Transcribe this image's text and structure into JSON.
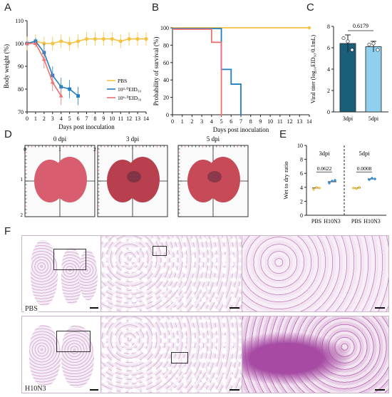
{
  "panels": {
    "A": {
      "label": "A",
      "ylabel": "Body weight (%)",
      "xlabel": "Days post inoculation",
      "yticks": [
        "70",
        "80",
        "90",
        "100",
        "110"
      ],
      "xticks": [
        "0",
        "1",
        "2",
        "3",
        "4",
        "5",
        "6",
        "7",
        "8",
        "9",
        "10",
        "11",
        "12",
        "13",
        "14"
      ],
      "legend": [
        "PBS",
        "10³·⁰EID₅₀",
        "10⁶·⁰EID₅₀"
      ]
    },
    "B": {
      "label": "B",
      "ylabel": "Probability of survival (%)",
      "xlabel": "Days post inoculation",
      "yticks": [
        "0",
        "20",
        "40",
        "60",
        "80",
        "100"
      ],
      "xticks": [
        "0",
        "1",
        "2",
        "3",
        "4",
        "5",
        "6",
        "7",
        "8",
        "9",
        "10",
        "11",
        "12",
        "13",
        "14"
      ]
    },
    "C": {
      "label": "C",
      "ylabel": "Viral titer (log₁₀EID₅₀/0.1mL)",
      "yticks": [
        "0",
        "2",
        "4",
        "6",
        "8"
      ],
      "categories": [
        "3dpi",
        "5dpi"
      ],
      "pvalue": "0.6179"
    },
    "D": {
      "label": "D",
      "titles": [
        "0 dpi",
        "3 dpi",
        "5 dpi"
      ],
      "ruler_top": [
        "0",
        "1",
        "2"
      ],
      "ruler_left": [
        "1",
        "2"
      ]
    },
    "E": {
      "label": "E",
      "ylabel": "Wet to dry ratio",
      "yticks": [
        "0",
        "2",
        "4",
        "6",
        "8",
        "10"
      ],
      "groups": [
        "3dpi",
        "5dpi"
      ],
      "categories": [
        "PBS",
        "H10N3",
        "PBS",
        "H10N3"
      ],
      "pvalues": [
        "0.0622",
        "0.0008"
      ]
    },
    "F": {
      "label": "F",
      "row_labels": [
        "PBS",
        "H10N3"
      ]
    }
  },
  "chart_data": [
    {
      "type": "line",
      "title": "",
      "xlabel": "Days post inoculation",
      "ylabel": "Body weight (%)",
      "xlim": [
        0,
        14
      ],
      "ylim": [
        70,
        110
      ],
      "series": [
        {
          "name": "PBS",
          "color": "#f5c342",
          "x": [
            0,
            1,
            2,
            3,
            4,
            5,
            6,
            7,
            8,
            9,
            10,
            11,
            12,
            13,
            14
          ],
          "y": [
            100,
            101,
            100,
            100,
            101,
            100,
            101,
            102,
            102,
            102,
            102,
            101,
            102,
            102,
            102
          ]
        },
        {
          "name": "10³·⁰EID₅₀",
          "color": "#1f7dc1",
          "x": [
            0,
            1,
            2,
            3,
            4,
            5,
            6
          ],
          "y": [
            100,
            101,
            96,
            86,
            81,
            80,
            77
          ]
        },
        {
          "name": "10⁶·⁰EID₅₀",
          "color": "#f07070",
          "x": [
            0,
            1,
            2,
            3,
            4
          ],
          "y": [
            100,
            100,
            93,
            83,
            77
          ]
        }
      ]
    },
    {
      "type": "line",
      "title": "",
      "xlabel": "Days post inoculation",
      "ylabel": "Probability of survival (%)",
      "xlim": [
        0,
        14
      ],
      "ylim": [
        0,
        100
      ],
      "series": [
        {
          "name": "",
          "color": "#f5c342",
          "x": [
            0,
            14
          ],
          "y": [
            100,
            100
          ]
        },
        {
          "name": "",
          "color": "#1f7dc1",
          "x": [
            0,
            5,
            5,
            6,
            6,
            7,
            7
          ],
          "y": [
            100,
            100,
            53,
            53,
            36,
            36,
            0
          ]
        },
        {
          "name": "",
          "color": "#f07070",
          "x": [
            0,
            4,
            4,
            5,
            5
          ],
          "y": [
            100,
            100,
            85,
            85,
            0
          ]
        }
      ]
    },
    {
      "type": "bar",
      "title": "",
      "ylabel": "Viral titer (log₁₀EID₅₀/0.1mL)",
      "ylim": [
        0,
        8
      ],
      "categories": [
        "3dpi",
        "5dpi"
      ],
      "values": [
        6.4,
        6.1
      ],
      "errors": [
        0.8,
        0.5
      ],
      "colors": [
        "#1a5f7a",
        "#8fd0ee"
      ],
      "points": [
        [
          6.9,
          6.6,
          5.8
        ],
        [
          6.3,
          6.4,
          5.8
        ]
      ]
    },
    {
      "type": "scatter",
      "title": "",
      "ylabel": "Wet to dry ratio",
      "ylim": [
        0,
        10
      ],
      "categories": [
        "PBS",
        "H10N3",
        "PBS",
        "H10N3"
      ],
      "means": [
        3.9,
        4.8,
        3.9,
        5.2
      ],
      "points": [
        [
          3.7,
          4.0,
          3.9
        ],
        [
          4.6,
          4.9,
          5.0
        ],
        [
          3.9,
          3.8,
          4.0
        ],
        [
          5.1,
          5.3,
          5.2
        ]
      ],
      "colors": [
        "#f5c342",
        "#3a8fd1",
        "#f5c342",
        "#3a8fd1"
      ]
    }
  ]
}
